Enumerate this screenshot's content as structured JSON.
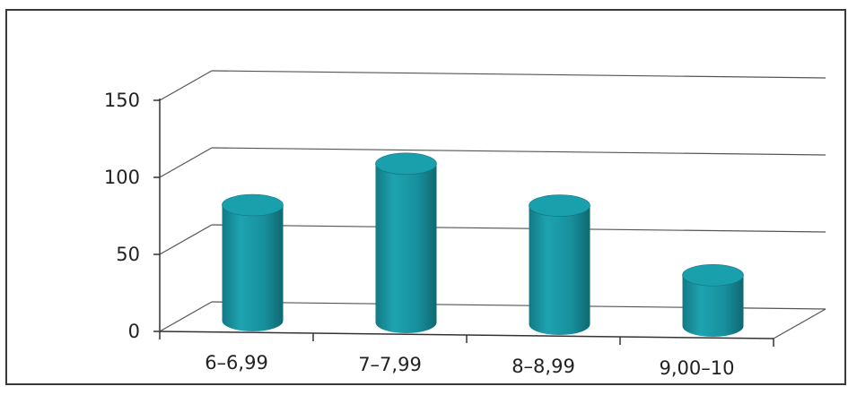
{
  "chart_data": {
    "type": "bar",
    "style": "3d-cylinder",
    "categories": [
      "6–6,99",
      "7–7,99",
      "8–8,99",
      "9,00–10"
    ],
    "values": [
      75,
      103,
      77,
      33
    ],
    "ylim": [
      0,
      150
    ],
    "yticks": [
      "0",
      "50",
      "100",
      "150"
    ],
    "grid": true,
    "legend": "none",
    "colors": {
      "bar": "#1b8f9c",
      "bar_top": "#1aa0ad",
      "bar_shade": "#11707a",
      "grid": "#555555"
    }
  }
}
